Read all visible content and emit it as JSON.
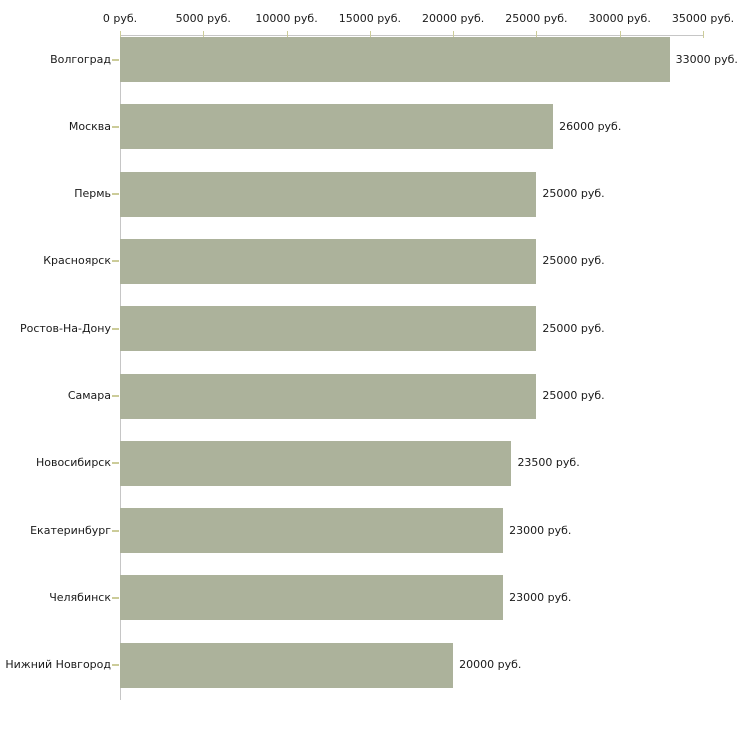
{
  "chart_data": {
    "type": "bar",
    "orientation": "horizontal",
    "categories": [
      "Волгоград",
      "Москва",
      "Пермь",
      "Красноярск",
      "Ростов-На-Дону",
      "Самара",
      "Новосибирск",
      "Екатеринбург",
      "Челябинск",
      "Нижний Новгород"
    ],
    "values": [
      33000,
      26000,
      25000,
      25000,
      25000,
      25000,
      23500,
      23000,
      23000,
      20000
    ],
    "value_labels": [
      "33000 руб.",
      "26000 руб.",
      "25000 руб.",
      "25000 руб.",
      "25000 руб.",
      "25000 руб.",
      "23500 руб.",
      "23000 руб.",
      "23000 руб.",
      "20000 руб."
    ],
    "x_axis": {
      "position": "top",
      "tick_values": [
        0,
        5000,
        10000,
        15000,
        20000,
        25000,
        30000,
        35000
      ],
      "tick_labels": [
        "0 руб.",
        "5000 руб.",
        "10000 руб.",
        "15000 руб.",
        "20000 руб.",
        "25000 руб.",
        "30000 руб.",
        "35000 руб."
      ],
      "min": 0,
      "max": 35000
    },
    "legend": "none",
    "grid": "off",
    "colors": {
      "bar": "#acb29b",
      "axis_line": "#c6c6c6",
      "tick_mark": "#cccc99",
      "text": "#1a1a1a",
      "background": "#ffffff"
    }
  }
}
